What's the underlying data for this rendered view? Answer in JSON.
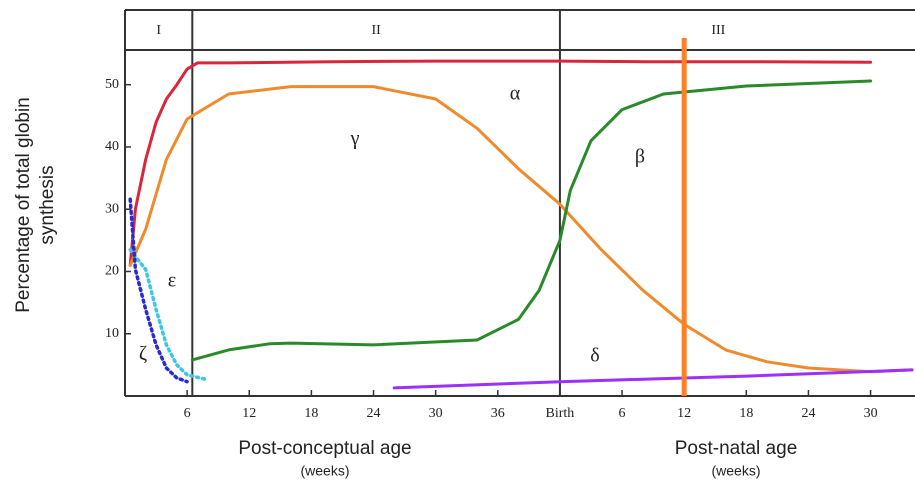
{
  "chart_data": {
    "type": "line",
    "y_label_lines": [
      "Percentage of total globin",
      "synthesis"
    ],
    "x_labels": [
      {
        "text": "Post-conceptual age",
        "unit": "(weeks)"
      },
      {
        "text": "Post-natal age",
        "unit": "(weeks)"
      }
    ],
    "periods": [
      "I",
      "II",
      "III"
    ],
    "period_bounds": [
      6.5,
      42
    ],
    "marker_x": 54,
    "marker_color": "#ff7f27",
    "xlim": [
      0,
      76
    ],
    "ylim": [
      0,
      62
    ],
    "yticks": [
      10,
      20,
      30,
      40,
      50
    ],
    "xticks": [
      6,
      12,
      18,
      24,
      30,
      36,
      {
        "value": 42,
        "label": "Birth"
      },
      {
        "value": 48,
        "label": "6"
      },
      {
        "value": 54,
        "label": "12"
      },
      {
        "value": 60,
        "label": "18"
      },
      {
        "value": 66,
        "label": "24"
      },
      {
        "value": 72,
        "label": "30"
      }
    ],
    "series": [
      {
        "name": "α",
        "color": "#d9263a",
        "dashed": false,
        "x": [
          0.5,
          1,
          2,
          3,
          4,
          5,
          6,
          7,
          10,
          20,
          30,
          42,
          50,
          60,
          72
        ],
        "values": [
          21,
          30,
          38,
          44,
          47.7,
          50,
          52.5,
          53.5,
          53.5,
          53.7,
          53.8,
          53.8,
          53.7,
          53.7,
          53.6
        ]
      },
      {
        "name": "γ",
        "color": "#f08a2c",
        "dashed": false,
        "x": [
          0.5,
          2,
          4,
          6,
          10,
          16,
          24,
          30,
          34,
          38,
          42,
          46,
          50,
          54,
          58,
          62,
          66,
          72,
          76
        ],
        "values": [
          21,
          26.8,
          38,
          44.5,
          48.5,
          49.7,
          49.7,
          47.7,
          43,
          36.5,
          30.8,
          23.5,
          17,
          11.5,
          7.4,
          5.5,
          4.5,
          3.9,
          4.2
        ]
      },
      {
        "name": "β",
        "color": "#2a8a2a",
        "dashed": false,
        "x": [
          6.5,
          10,
          14,
          16,
          24,
          34,
          38,
          40,
          42,
          43,
          45,
          48,
          52,
          60,
          72
        ],
        "values": [
          5.8,
          7.4,
          8.4,
          8.5,
          8.2,
          9,
          12.3,
          17,
          25,
          33,
          41,
          46,
          48.5,
          49.8,
          50.6
        ]
      },
      {
        "name": "ε",
        "color": "#3fc6e6",
        "dashed": true,
        "x": [
          0.5,
          2,
          3,
          4,
          5,
          6,
          8
        ],
        "values": [
          23.5,
          20.3,
          13.9,
          8.2,
          5,
          3.4,
          2.6
        ]
      },
      {
        "name": "ζ",
        "color": "#2a2ad0",
        "dashed": true,
        "x": [
          0.5,
          1,
          2,
          3,
          4,
          5,
          6
        ],
        "values": [
          31.6,
          20.3,
          13.9,
          8.2,
          4.5,
          2.9,
          2.3
        ]
      },
      {
        "name": "δ",
        "color": "#9b30ff",
        "dashed": false,
        "x": [
          26,
          42,
          60,
          76
        ],
        "values": [
          1.3,
          2.3,
          3.2,
          4.2
        ]
      }
    ]
  }
}
